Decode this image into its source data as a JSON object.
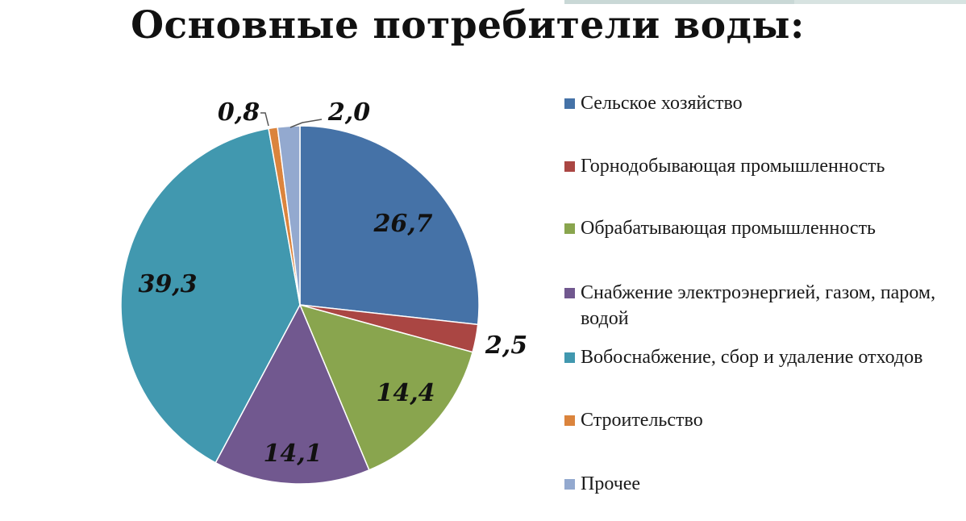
{
  "title": "Основные потребители воды:",
  "chart_data": {
    "type": "pie",
    "title": "Основные потребители воды:",
    "start_angle_deg": 0,
    "direction": "clockwise",
    "legend_position": "right",
    "slices": [
      {
        "label": "Сельское хозяйство",
        "value": 26.7,
        "display": "26,7",
        "color": "#4572a7"
      },
      {
        "label": "Горнодобывающая промышленность",
        "value": 2.5,
        "display": "2,5",
        "color": "#aa4643"
      },
      {
        "label": "Обрабатывающая промышленность",
        "value": 14.4,
        "display": "14,4",
        "color": "#89a54e"
      },
      {
        "label": "Снабжение электроэнергией, газом, паром, водой",
        "value": 14.1,
        "display": "14,1",
        "color": "#71588f"
      },
      {
        "label": "Вобоснабжение, сбор и удаление отходов",
        "value": 39.3,
        "display": "39,3",
        "color": "#4198af"
      },
      {
        "label": "Строительство",
        "value": 0.8,
        "display": "0,8",
        "color": "#db843d"
      },
      {
        "label": "Прочее",
        "value": 2.0,
        "display": "2,0",
        "color": "#93a9cf"
      }
    ]
  }
}
